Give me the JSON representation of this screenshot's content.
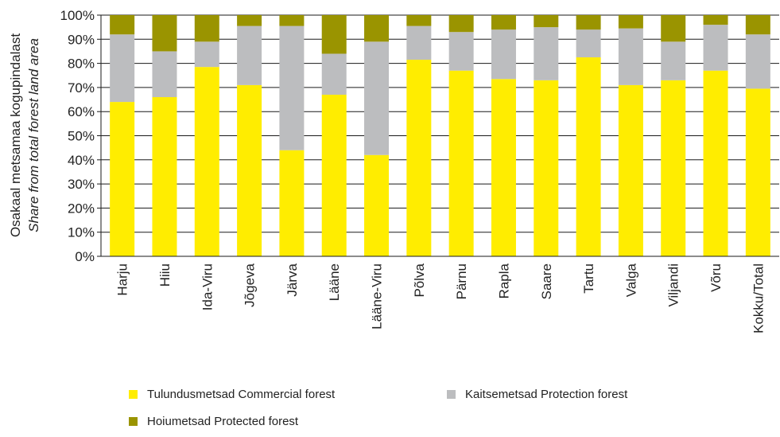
{
  "chart_data": {
    "type": "bar",
    "stacked": true,
    "ylabel_line1": "Osakaal metsamaa kogupindalast",
    "ylabel_line2": "Share from total forest land area",
    "yticks": [
      "0%",
      "10%",
      "20%",
      "30%",
      "40%",
      "50%",
      "60%",
      "70%",
      "80%",
      "90%",
      "100%"
    ],
    "ylim": [
      0,
      100
    ],
    "grid": true,
    "legend_position": "bottom",
    "categories": [
      "Harju",
      "Hiiu",
      "Ida-Viru",
      "Jõgeva",
      "Järva",
      "Lääne",
      "Lääne-Viru",
      "Põlva",
      "Pärnu",
      "Rapla",
      "Saare",
      "Tartu",
      "Valga",
      "Viljandi",
      "Võru",
      "Kokku/Total"
    ],
    "series": [
      {
        "name": "Tulundusmetsad Commercial forest",
        "color": "#ffed00",
        "values": [
          64,
          66,
          78.5,
          71,
          44,
          67,
          42,
          81.5,
          77,
          73.5,
          73,
          82.5,
          71,
          73,
          77,
          69.5
        ]
      },
      {
        "name": "Kaitsemetsad Protection forest",
        "color": "#bcbdbf",
        "values": [
          28,
          19,
          10.5,
          24.5,
          51.5,
          17,
          47,
          14,
          16,
          20.5,
          22,
          11.5,
          23.5,
          16,
          19,
          22.5
        ]
      },
      {
        "name": "Hoiumetsad Protected forest",
        "color": "#9a9400",
        "values": [
          8,
          15,
          11,
          4.5,
          4.5,
          16,
          11,
          4.5,
          7,
          6,
          5,
          6,
          5.5,
          11,
          4,
          8
        ]
      }
    ]
  }
}
